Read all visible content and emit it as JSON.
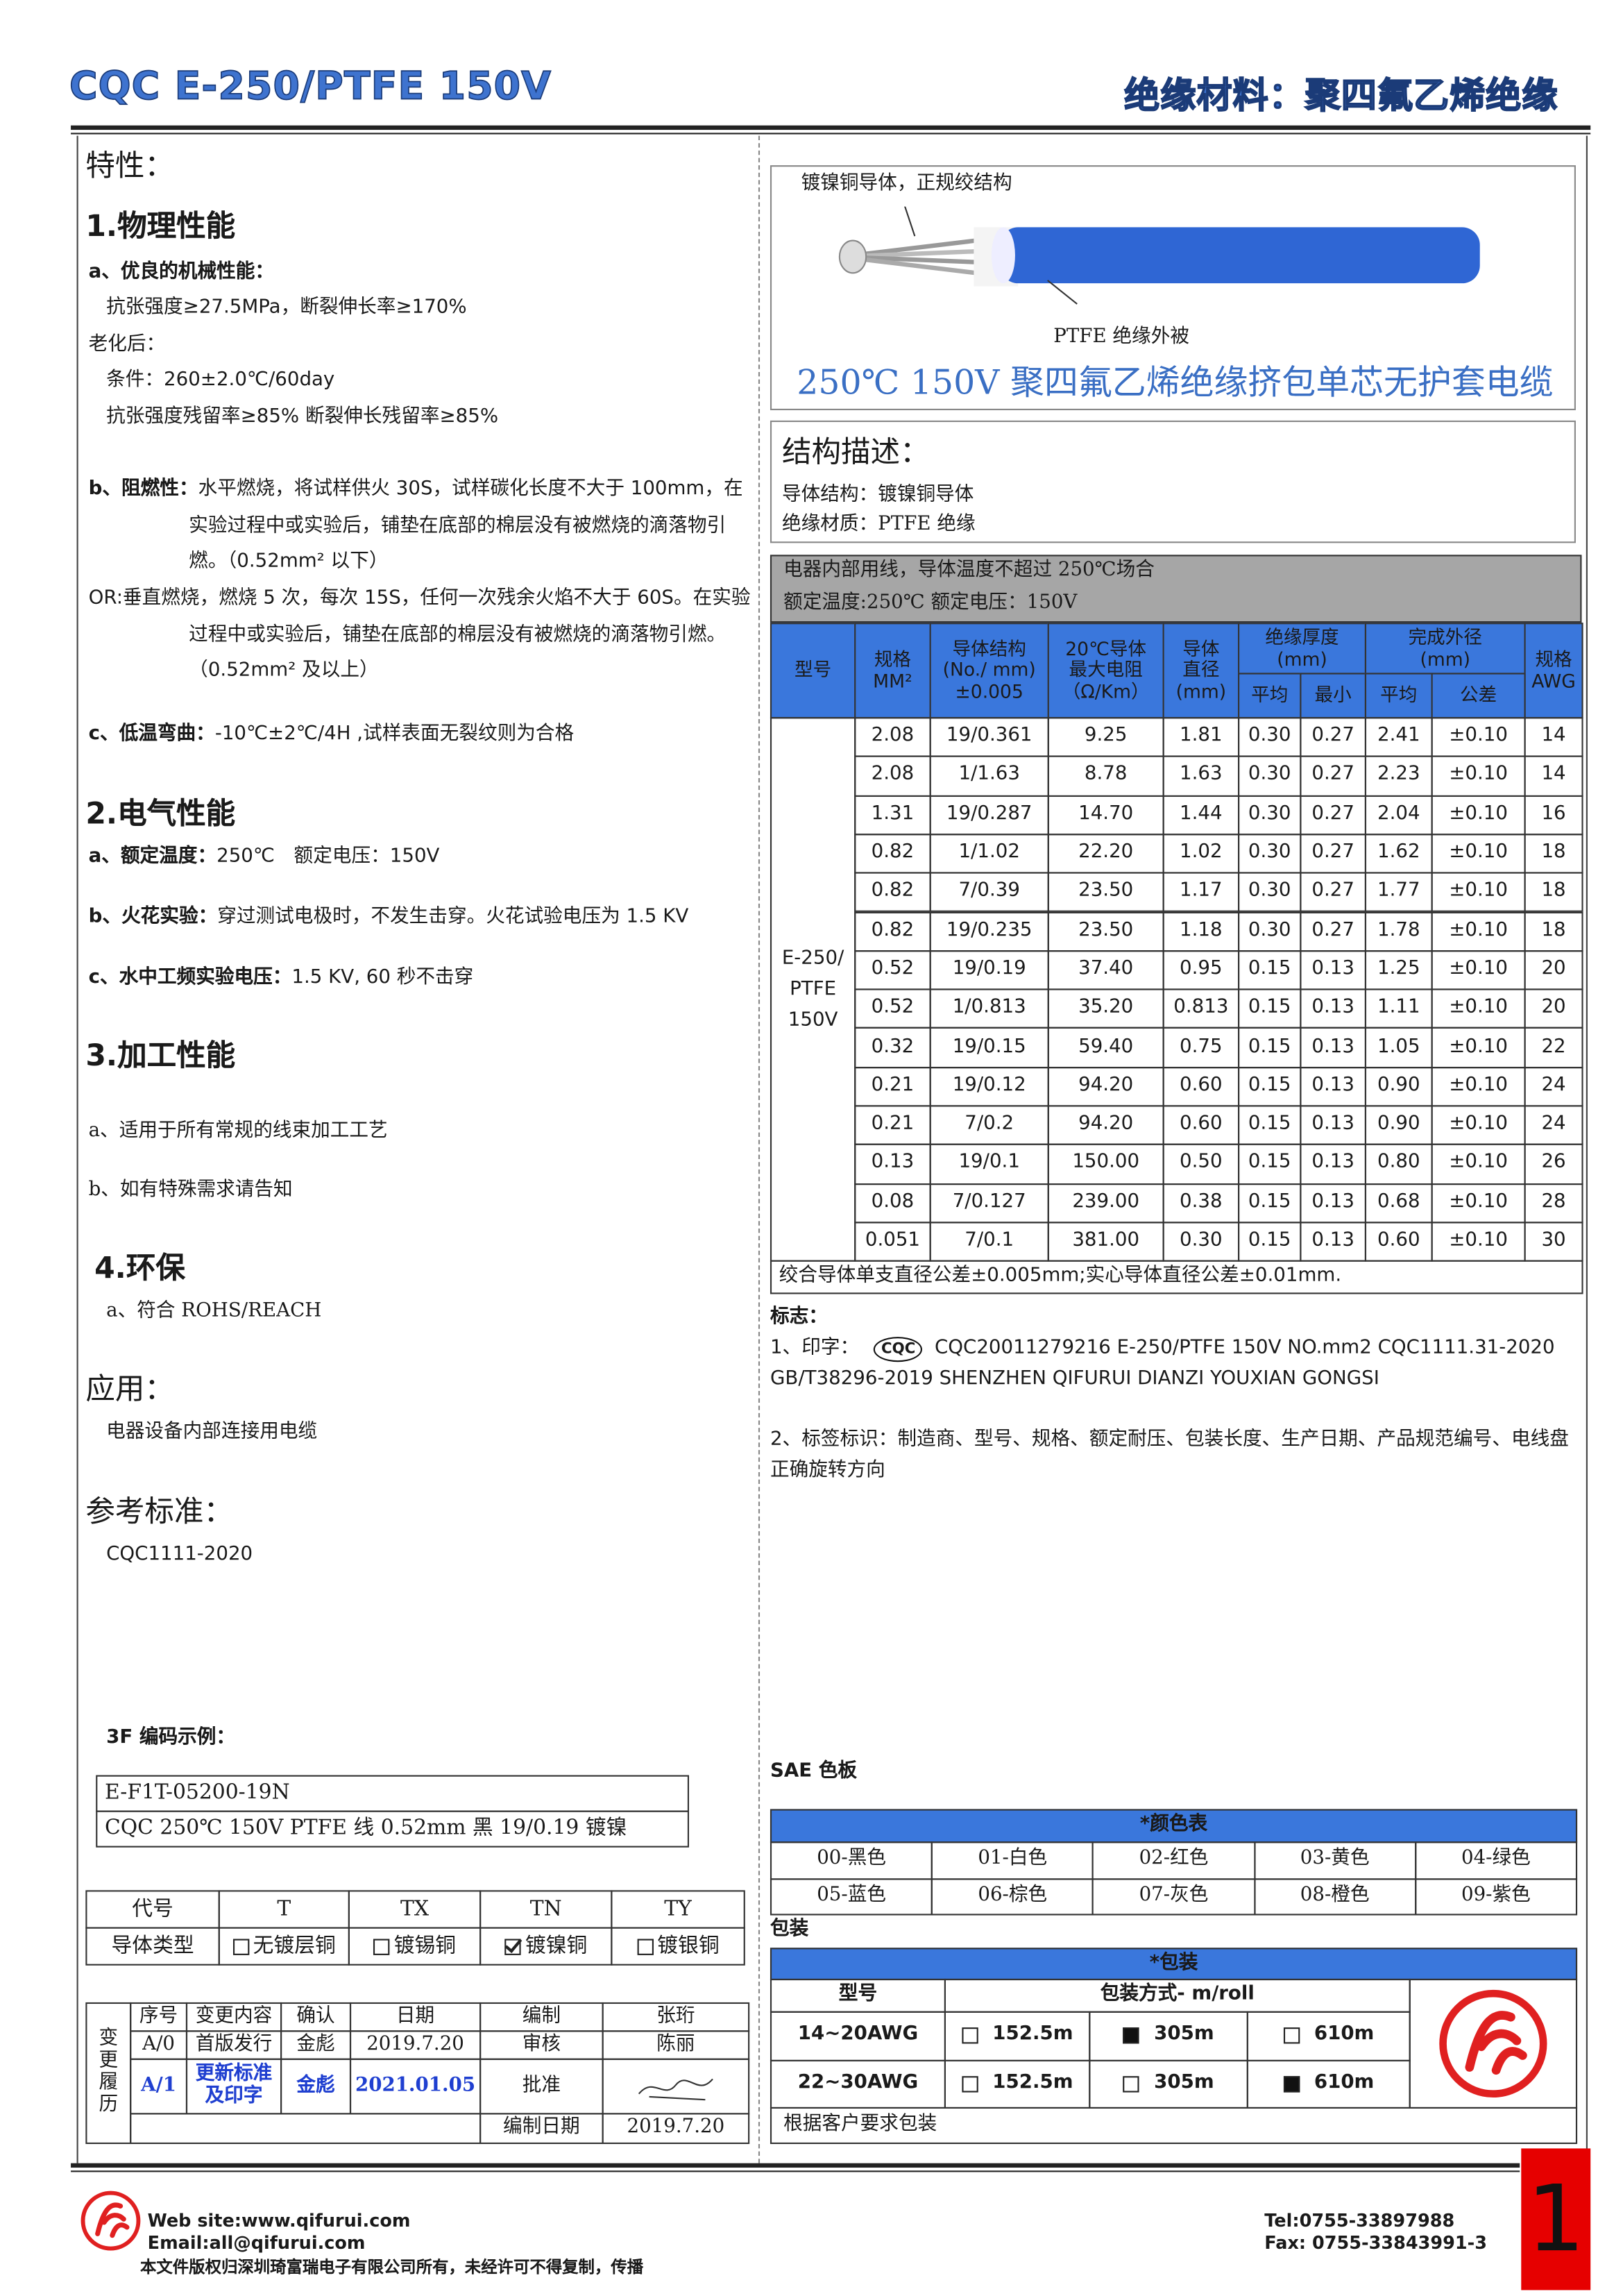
{
  "header": {
    "title": "CQC E-250/PTFE 150V",
    "material": "绝缘材料：聚四氟乙烯绝缘"
  },
  "properties": {
    "title": "特性：",
    "sections": [
      {
        "heading": "1.物理性能",
        "items": [
          {
            "label": "a、优良的机械性能："
          },
          {
            "text": "抗张强度≥27.5MPa，断裂伸长率≥170%"
          },
          {
            "text": "老化后："
          },
          {
            "text": "条件：260±2.0℃/60day"
          },
          {
            "text": "抗张强度残留率≥85% 断裂伸长残留率≥85%"
          },
          {
            "label": "b、阻燃性：",
            "text": "水平燃烧，将试样供火 30S，试样碳化长度不大于 100mm，在实验过程中或实验后，铺垫在底部的棉层没有被燃烧的滴落物引燃。（0.52mm² 以下）"
          },
          {
            "text": "OR:垂直燃烧，燃烧 5 次，每次 15S，任何一次残余火焰不大于 60S。在实验过程中或实验后，铺垫在底部的棉层没有被燃烧的滴落物引燃。（0.52mm² 及以上）"
          },
          {
            "label": "c、低温弯曲：",
            "text": "-10℃±2℃/4H ,试样表面无裂纹则为合格"
          }
        ]
      },
      {
        "heading": "2.电气性能",
        "items": [
          {
            "label": "a、额定温度：",
            "text": "250℃　额定电压：150V"
          },
          {
            "label": "b、火花实验：",
            "text": "穿过测试电极时，不发生击穿。火花试验电压为 1.5 KV"
          },
          {
            "label": "c、水中工频实验电压：",
            "text": "1.5 KV, 60 秒不击穿"
          }
        ]
      },
      {
        "heading": "3.加工性能",
        "items": [
          {
            "text": "a、适用于所有常规的线束加工工艺"
          },
          {
            "text": "b、如有特殊需求请告知"
          }
        ]
      },
      {
        "heading": "4.环保",
        "items": [
          {
            "text": "a、符合 ROHS/REACH"
          }
        ]
      }
    ]
  },
  "application": {
    "heading": "应用：",
    "text": "电器设备内部连接用电缆"
  },
  "standard": {
    "heading": "参考标准：",
    "text": "CQC1111-2020"
  },
  "code_example": {
    "title": "3F 编码示例：",
    "lines": [
      "E-F1T-05200-19N",
      "CQC 250℃  150V PTFE 线  0.52mm  黑 19/0.19 镀镍"
    ]
  },
  "conductor_table": {
    "header": [
      "代号",
      "T",
      "TX",
      "TN",
      "TY"
    ],
    "row_label": "导体类型",
    "types": [
      "无镀层铜",
      "镀锡铜",
      "镀镍铜",
      "镀银铜"
    ],
    "checked": [
      false,
      false,
      true,
      false
    ]
  },
  "revision_table": {
    "side_label": "变更履历",
    "header": [
      "序号",
      "变更内容",
      "确认",
      "日期",
      "编制",
      "张珩"
    ],
    "rows": [
      [
        "A/0",
        "首版发行",
        "金彪",
        "2019.7.20",
        "审核",
        "陈丽"
      ],
      [
        "A/1",
        "更新标准及印字",
        "金彪",
        "2021.01.05",
        "批准"
      ]
    ],
    "date_label": "编制日期",
    "date": "2019.7.20"
  },
  "diagram": {
    "conductor_label": "镀镍铜导体，正规绞结构",
    "insulation_label": "PTFE 绝缘外被",
    "caption": "250℃  150V 聚四氟乙烯绝缘挤包单芯无护套电缆"
  },
  "structure": {
    "heading": "结构描述：",
    "lines": [
      "导体结构：镀镍铜导体",
      "绝缘材质：PTFE 绝缘"
    ]
  },
  "spec_table": {
    "notes": [
      "电器内部用线，导体温度不超过 250℃场合",
      "额定温度:250℃  额定电压：150V"
    ],
    "columns": [
      [
        "型号"
      ],
      [
        "规格",
        "MM²"
      ],
      [
        "导体结构",
        "(No./ mm)",
        "±0.005"
      ],
      [
        "20℃导体",
        "最大电阻",
        "（Ω/Km）"
      ],
      [
        "导体",
        "直径",
        "(mm)"
      ],
      [
        "绝缘厚度",
        "(mm)"
      ],
      [
        "完成外径",
        "(mm)"
      ],
      [
        "规格",
        "AWG"
      ]
    ],
    "sub_columns": [
      "平均",
      "最小",
      "平均",
      "公差"
    ],
    "model": [
      "E-250/",
      "PTFE",
      "150V"
    ],
    "rows": [
      [
        "2.08",
        "19/0.361",
        "9.25",
        "1.81",
        "0.30",
        "0.27",
        "2.41",
        "±0.10",
        "14"
      ],
      [
        "2.08",
        "1/1.63",
        "8.78",
        "1.63",
        "0.30",
        "0.27",
        "2.23",
        "±0.10",
        "14"
      ],
      [
        "1.31",
        "19/0.287",
        "14.70",
        "1.44",
        "0.30",
        "0.27",
        "2.04",
        "±0.10",
        "16"
      ],
      [
        "0.82",
        "1/1.02",
        "22.20",
        "1.02",
        "0.30",
        "0.27",
        "1.62",
        "±0.10",
        "18"
      ],
      [
        "0.82",
        "7/0.39",
        "23.50",
        "1.17",
        "0.30",
        "0.27",
        "1.77",
        "±0.10",
        "18"
      ],
      [
        "0.82",
        "19/0.235",
        "23.50",
        "1.18",
        "0.30",
        "0.27",
        "1.78",
        "±0.10",
        "18"
      ],
      [
        "0.52",
        "19/0.19",
        "37.40",
        "0.95",
        "0.15",
        "0.13",
        "1.25",
        "±0.10",
        "20"
      ],
      [
        "0.52",
        "1/0.813",
        "35.20",
        "0.813",
        "0.15",
        "0.13",
        "1.11",
        "±0.10",
        "20"
      ],
      [
        "0.32",
        "19/0.15",
        "59.40",
        "0.75",
        "0.15",
        "0.13",
        "1.05",
        "±0.10",
        "22"
      ],
      [
        "0.21",
        "19/0.12",
        "94.20",
        "0.60",
        "0.15",
        "0.13",
        "0.90",
        "±0.10",
        "24"
      ],
      [
        "0.21",
        "7/0.2",
        "94.20",
        "0.60",
        "0.15",
        "0.13",
        "0.90",
        "±0.10",
        "24"
      ],
      [
        "0.13",
        "19/0.1",
        "150.00",
        "0.50",
        "0.15",
        "0.13",
        "0.80",
        "±0.10",
        "26"
      ],
      [
        "0.08",
        "7/0.127",
        "239.00",
        "0.38",
        "0.15",
        "0.13",
        "0.68",
        "±0.10",
        "28"
      ],
      [
        "0.051",
        "7/0.1",
        "381.00",
        "0.30",
        "0.15",
        "0.13",
        "0.60",
        "±0.10",
        "30"
      ]
    ],
    "footnote": "绞合导体单支直径公差±0.005mm;实心导体直径公差±0.01mm."
  },
  "marking": {
    "title": "标志：",
    "prefix": "1、印字：",
    "logo_text": "CQC",
    "text": "CQC20011279216  E-250/PTFE  150V  NO.mm2  CQC1111.31-2020 GB/T38296-2019 SHENZHEN QIFURUI DIANZI YOUXIAN GONGSI",
    "label_line": "2、标签标识：制造商、型号、规格、额定耐压、包装长度、生产日期、产品规范编号、电线盘正确旋转方向"
  },
  "color_board": {
    "title": "SAE 色板",
    "table_title": "*颜色表",
    "colors": [
      "00-黑色",
      "01-白色",
      "02-红色",
      "03-黄色",
      "04-绿色",
      "05-蓝色",
      "06-棕色",
      "07-灰色",
      "08-橙色",
      "09-紫色"
    ]
  },
  "packing": {
    "title": "包装",
    "table_title": "*包装",
    "header": [
      "型号",
      "包装方式- m/roll"
    ],
    "options": [
      "152.5m",
      "305m",
      "610m"
    ],
    "rows": [
      {
        "model": "14~20AWG",
        "selected": 1
      },
      {
        "model": "22~30AWG",
        "selected": 2
      }
    ],
    "note": "根据客户要求包装"
  },
  "footer": {
    "website": "Web site:www.qifurui.com",
    "email": "Email:all@qifurui.com",
    "copyright": "本文件版权归深圳琦富瑞电子有限公司所有，未经许可不得复制，传播",
    "tel": "Tel:0755-33897988",
    "fax": "Fax: 0755-33843991-3",
    "page": "1"
  }
}
